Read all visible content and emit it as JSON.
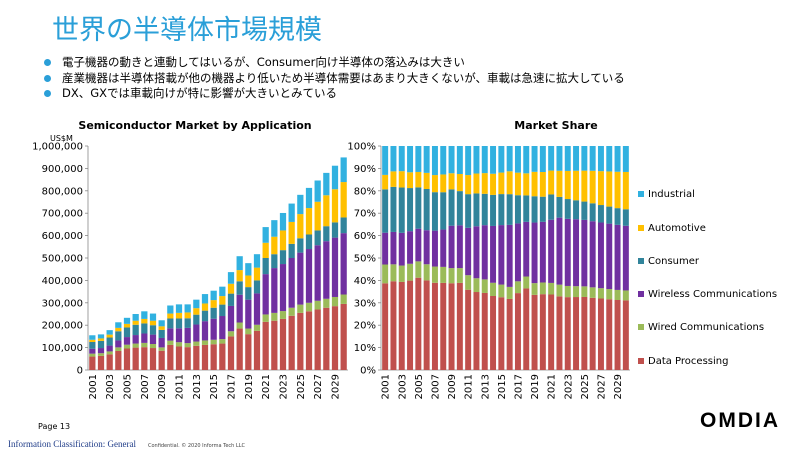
{
  "page": {
    "title": "世界の半導体市場規模",
    "bullets": [
      "電子機器の動きと連動してはいるが、Consumer向け半導体の落込みは大きい",
      "産業機器は半導体搭載が他の機器より低いため半導体需要はあまり大きくないが、車載は急速に拡大している",
      "DX、GXでは車載向けが特に影響が大きいとみている"
    ],
    "page_number": "Page 13",
    "classification": "Information Classification: General",
    "confidential": "Confidential. © 2020 Informa Tech LLC",
    "logo": "OMDIA"
  },
  "colors": {
    "Data Processing": "#c0504d",
    "Wired Communications": "#9bbb59",
    "Wireless Communications": "#7030a0",
    "Consumer": "#31849b",
    "Automotive": "#ffc000",
    "Industrial": "#31b1e0"
  },
  "chart_data": [
    {
      "type": "bar",
      "stacked": true,
      "title": "Semiconductor Market by Application",
      "ylabel": "US$M",
      "ylim": [
        0,
        1000000
      ],
      "ytick_labels": [
        "0",
        "100,000",
        "200,000",
        "300,000",
        "400,000",
        "500,000",
        "600,000",
        "700,000",
        "800,000",
        "900,000",
        "1,000,000"
      ],
      "categories": [
        "2001",
        "2002",
        "2003",
        "2004",
        "2005",
        "2006",
        "2007",
        "2008",
        "2009",
        "2010",
        "2011",
        "2012",
        "2013",
        "2014",
        "2015",
        "2016",
        "2017",
        "2018",
        "2019",
        "2020",
        "2021",
        "2022",
        "2023",
        "2024",
        "2025",
        "2026",
        "2027",
        "2028",
        "2029",
        "2030"
      ],
      "xtick_labels": [
        "2001",
        "2003",
        "2005",
        "2007",
        "2009",
        "2011",
        "2013",
        "2015",
        "2017",
        "2019",
        "2021",
        "2023",
        "2025",
        "2027",
        "2029"
      ],
      "series": [
        {
          "name": "Data Processing",
          "values": [
            60000,
            63000,
            70000,
            85000,
            96000,
            100000,
            102000,
            98000,
            86000,
            112000,
            105000,
            102000,
            108000,
            112000,
            115000,
            118000,
            150000,
            185000,
            160000,
            175000,
            215000,
            220000,
            228000,
            242000,
            255000,
            262000,
            270000,
            278000,
            285000,
            295000
          ]
        },
        {
          "name": "Wired Communications",
          "values": [
            13000,
            12000,
            13000,
            16000,
            17000,
            18000,
            19000,
            18000,
            15000,
            19000,
            19000,
            18000,
            19000,
            20000,
            20000,
            20000,
            23000,
            27000,
            25000,
            27000,
            33000,
            35000,
            35000,
            36000,
            37000,
            38000,
            39000,
            40000,
            41000,
            42000
          ]
        },
        {
          "name": "Wireless Communications",
          "values": [
            22000,
            23000,
            26000,
            31000,
            34000,
            38000,
            42000,
            42000,
            42000,
            55000,
            62000,
            68000,
            76000,
            86000,
            94000,
            103000,
            113000,
            124000,
            129000,
            140000,
            180000,
            200000,
            210000,
            222000,
            232000,
            240000,
            248000,
            257000,
            265000,
            274000
          ]
        },
        {
          "name": "Consumer",
          "values": [
            30000,
            32000,
            36000,
            41000,
            43000,
            46000,
            45000,
            42000,
            36000,
            44000,
            44000,
            43000,
            44000,
            47000,
            49000,
            51000,
            55000,
            60000,
            56000,
            58000,
            72000,
            62000,
            62000,
            63000,
            64000,
            65000,
            66000,
            67000,
            68000,
            70000
          ]
        },
        {
          "name": "Automotive",
          "values": [
            10000,
            11000,
            13000,
            15000,
            16000,
            18000,
            20000,
            20000,
            16000,
            22000,
            25000,
            26000,
            29000,
            32000,
            34000,
            38000,
            44000,
            50000,
            52000,
            57000,
            68000,
            78000,
            88000,
            98000,
            108000,
            118000,
            128000,
            138000,
            148000,
            158000
          ]
        },
        {
          "name": "Industrial",
          "values": [
            20000,
            18000,
            20000,
            25000,
            27000,
            30000,
            34000,
            32000,
            27000,
            36000,
            38000,
            36000,
            38000,
            42000,
            42000,
            42000,
            52000,
            62000,
            55000,
            60000,
            70000,
            74000,
            78000,
            82000,
            86000,
            90000,
            95000,
            100000,
            105000,
            110000
          ]
        }
      ]
    },
    {
      "type": "bar",
      "stacked": true,
      "normalized": true,
      "title": "Market Share",
      "ylim": [
        0,
        100
      ],
      "ytick_labels": [
        "0%",
        "10%",
        "20%",
        "30%",
        "40%",
        "50%",
        "60%",
        "70%",
        "80%",
        "90%",
        "100%"
      ],
      "categories": [
        "2001",
        "2002",
        "2003",
        "2004",
        "2005",
        "2006",
        "2007",
        "2008",
        "2009",
        "2010",
        "2011",
        "2012",
        "2013",
        "2014",
        "2015",
        "2016",
        "2017",
        "2018",
        "2019",
        "2020",
        "2021",
        "2022",
        "2023",
        "2024",
        "2025",
        "2026",
        "2027",
        "2028",
        "2029",
        "2030"
      ],
      "xtick_labels": [
        "2001",
        "2003",
        "2005",
        "2007",
        "2009",
        "2011",
        "2013",
        "2015",
        "2017",
        "2019",
        "2021",
        "2023",
        "2025",
        "2027",
        "2029"
      ],
      "legend_order": [
        "Industrial",
        "Automotive",
        "Consumer",
        "Wireless Communications",
        "Wired Communications",
        "Data Processing"
      ],
      "series_ref": "chart_data.0.series"
    }
  ]
}
